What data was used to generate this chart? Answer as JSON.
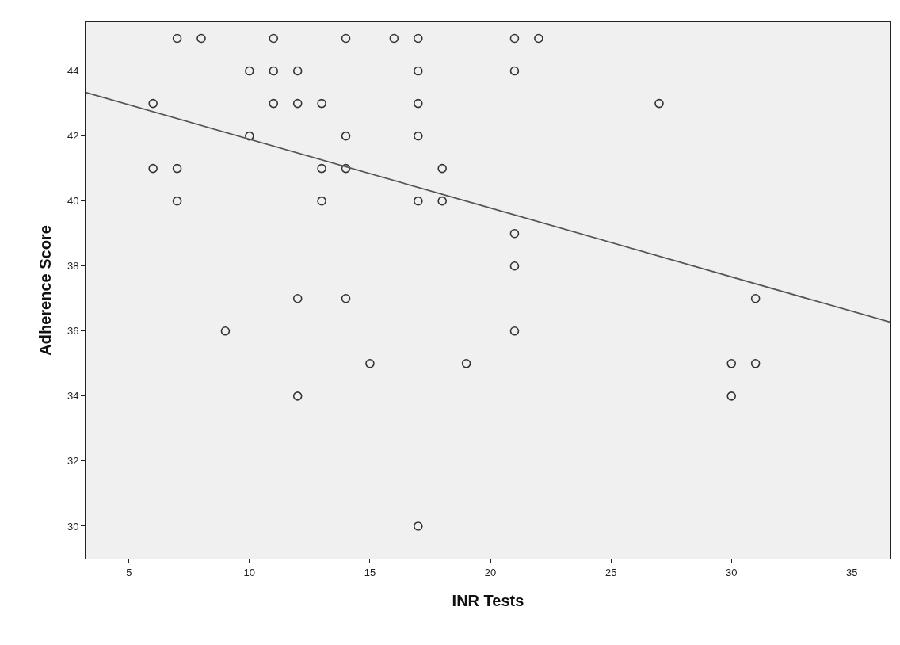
{
  "chart_data": {
    "type": "scatter",
    "xlabel": "INR Tests",
    "ylabel": "Adherence Score",
    "xlim": [
      3.2,
      36.6
    ],
    "xticks": [
      5,
      10,
      15,
      20,
      25,
      30,
      35
    ],
    "ylim": [
      29.0,
      45.5
    ],
    "yticks": [
      30,
      32,
      34,
      36,
      38,
      40,
      42,
      44
    ],
    "series": [
      {
        "color": "#333333",
        "marker": "circle",
        "x": [
          7,
          8,
          11,
          14,
          16,
          17,
          21,
          22,
          10,
          11,
          12,
          17,
          21,
          6,
          11,
          12,
          13,
          17,
          27,
          10,
          14,
          17,
          6,
          7,
          13,
          14,
          18,
          7,
          13,
          17,
          18,
          21,
          21,
          12,
          14,
          31,
          9,
          21,
          15,
          19,
          30,
          31,
          12,
          30,
          17
        ],
        "values": [
          45,
          45,
          45,
          45,
          45,
          45,
          45,
          45,
          44,
          44,
          44,
          44,
          44,
          43,
          43,
          43,
          43,
          43,
          43,
          42,
          42,
          42,
          41,
          41,
          41,
          41,
          41,
          40,
          40,
          40,
          40,
          39,
          38,
          37,
          37,
          37,
          36,
          36,
          35,
          35,
          35,
          35,
          34,
          34,
          30
        ]
      },
      {
        "type": "line",
        "color": "#555555",
        "x": [
          3.2,
          36.6
        ],
        "values": [
          43.34,
          36.27
        ]
      }
    ]
  }
}
